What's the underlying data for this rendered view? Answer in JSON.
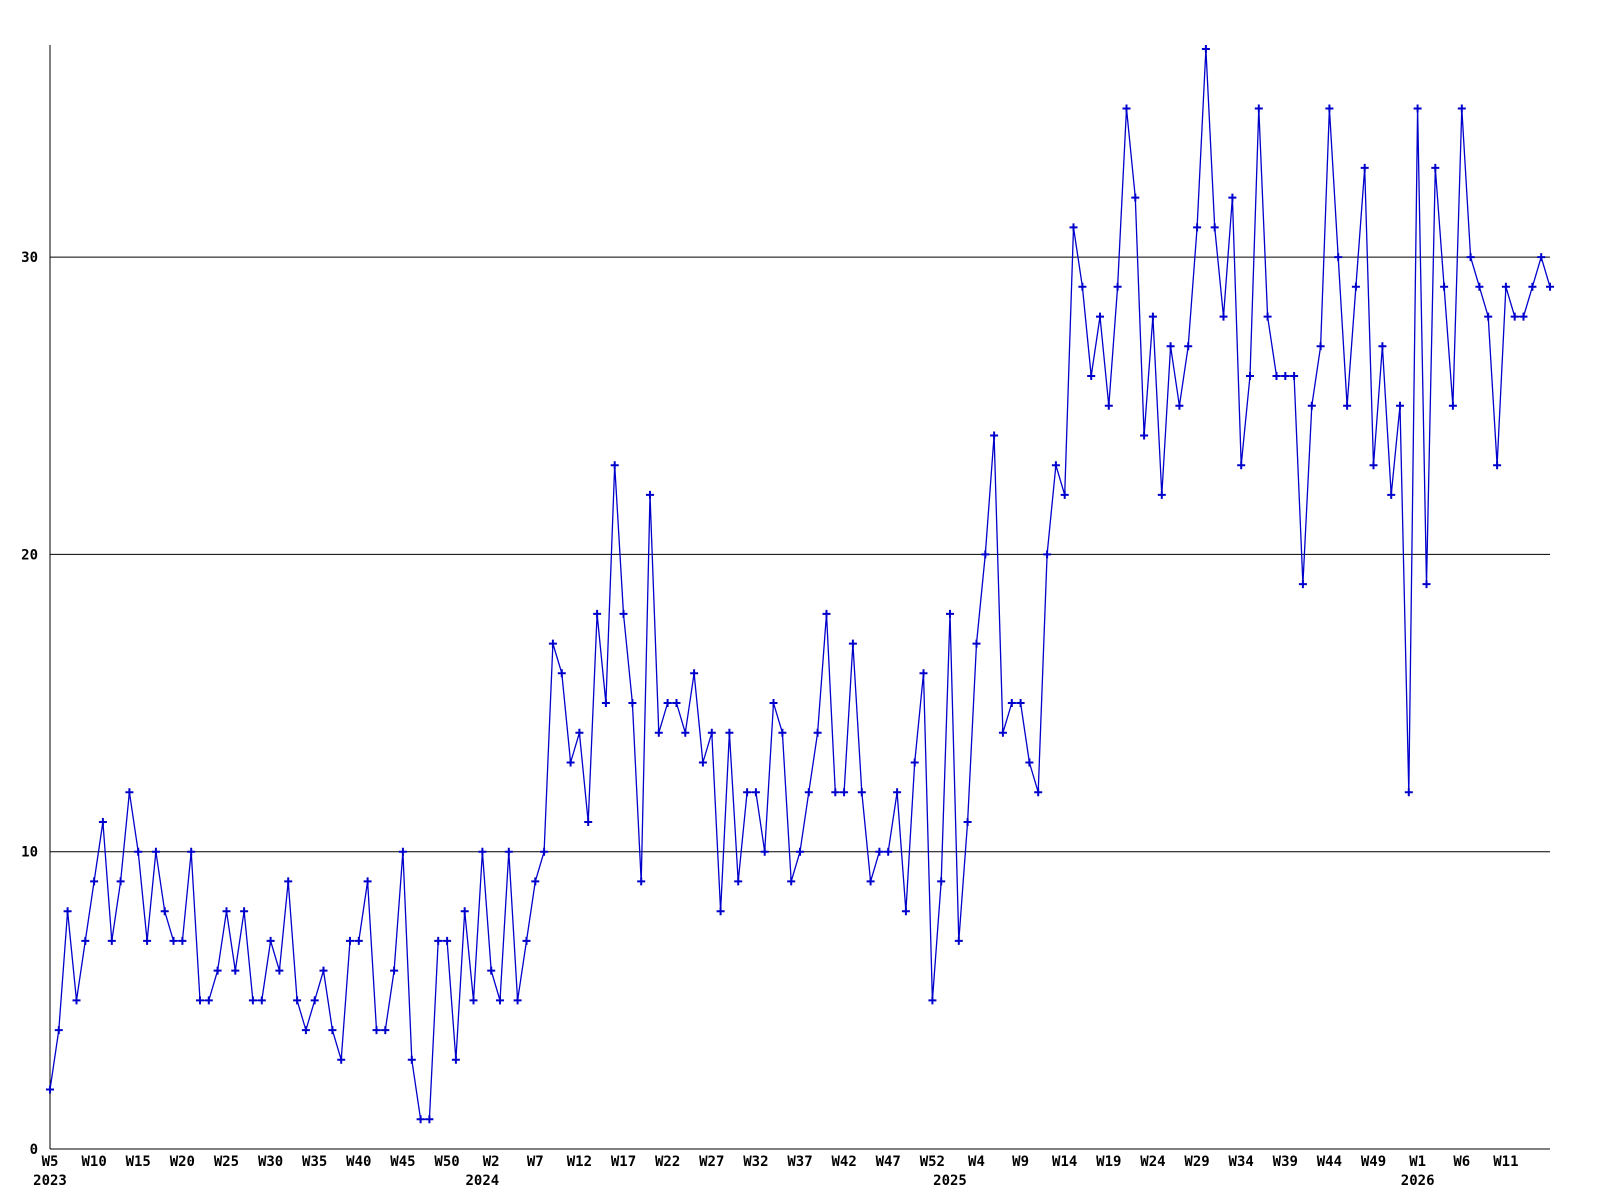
{
  "chart_data": {
    "type": "line",
    "title": "",
    "xlabel": "",
    "ylabel": "",
    "legend": "none",
    "grid": "horizontal",
    "line_color": "#0000cc",
    "axis_color": "#000000",
    "marker": "plus",
    "ylim": [
      0,
      37.2
    ],
    "yticks": [
      0,
      10,
      20,
      30
    ],
    "x_unit": "ISO week",
    "x_start_label": "W5 2023",
    "x_end_label": "W16 2026",
    "tick_step": 5,
    "tick_labels": [
      "W5",
      "W10",
      "W15",
      "W20",
      "W25",
      "W30",
      "W35",
      "W40",
      "W45",
      "W50",
      "W2",
      "W7",
      "W12",
      "W17",
      "W22",
      "W27",
      "W32",
      "W37",
      "W42",
      "W47",
      "W52",
      "W4",
      "W9",
      "W14",
      "W19",
      "W24",
      "W29",
      "W34",
      "W39",
      "W44",
      "W49",
      "W1",
      "W6",
      "W11"
    ],
    "year_labels": [
      {
        "label": "2023",
        "index": 0
      },
      {
        "label": "2024",
        "index": 49
      },
      {
        "label": "2025",
        "index": 102
      },
      {
        "label": "2026",
        "index": 155
      }
    ],
    "values": [
      2,
      4,
      8,
      5,
      7,
      9,
      11,
      7,
      9,
      12,
      10,
      7,
      10,
      8,
      7,
      7,
      10,
      5,
      5,
      6,
      8,
      6,
      8,
      5,
      5,
      7,
      6,
      9,
      5,
      4,
      5,
      6,
      4,
      3,
      7,
      7,
      9,
      4,
      4,
      6,
      10,
      3,
      1,
      1,
      7,
      7,
      3,
      8,
      5,
      10,
      6,
      5,
      10,
      5,
      7,
      9,
      10,
      17,
      16,
      13,
      14,
      11,
      18,
      15,
      23,
      18,
      15,
      9,
      22,
      14,
      15,
      15,
      14,
      16,
      13,
      14,
      8,
      14,
      9,
      12,
      12,
      10,
      15,
      14,
      9,
      10,
      12,
      14,
      18,
      12,
      12,
      17,
      12,
      9,
      10,
      10,
      12,
      8,
      13,
      16,
      5,
      9,
      18,
      7,
      11,
      17,
      20,
      24,
      14,
      15,
      15,
      13,
      12,
      20,
      23,
      22,
      31,
      29,
      26,
      28,
      25,
      29,
      35,
      32,
      24,
      28,
      22,
      27,
      25,
      27,
      31,
      37,
      31,
      28,
      32,
      23,
      26,
      35,
      28,
      26,
      26,
      26,
      19,
      25,
      27,
      35,
      30,
      25,
      29,
      33,
      23,
      27,
      22,
      25,
      12,
      35,
      19,
      33,
      29,
      25,
      35,
      30,
      29,
      28,
      23,
      29,
      28,
      28,
      29,
      30,
      29
    ]
  }
}
